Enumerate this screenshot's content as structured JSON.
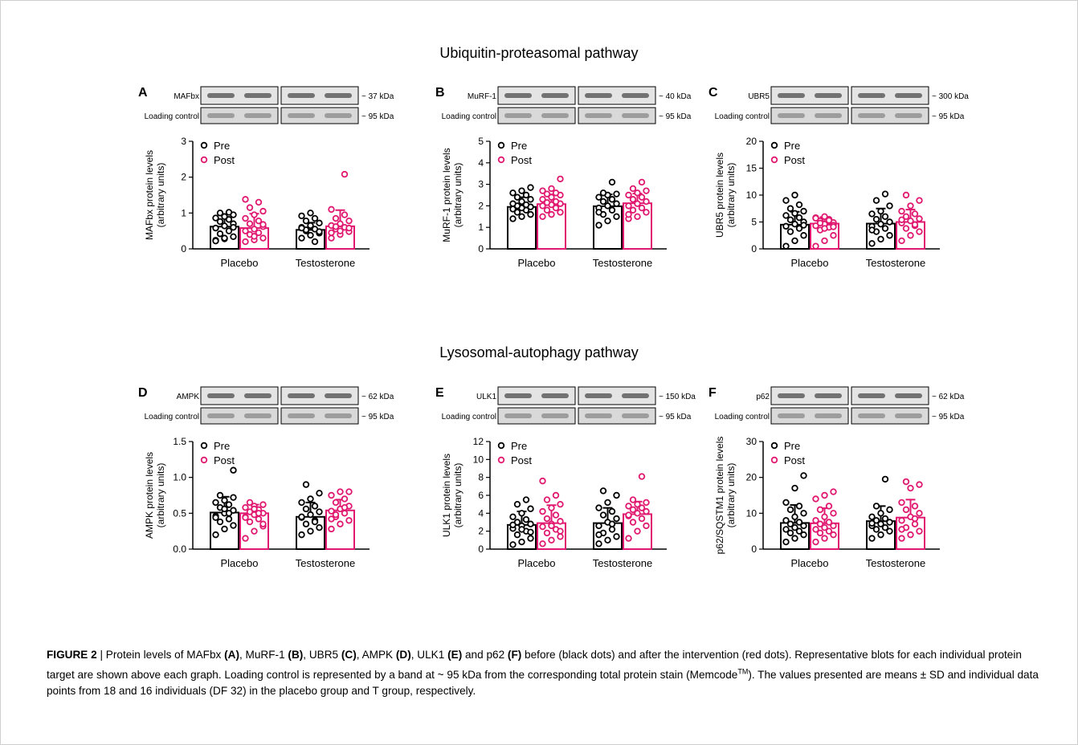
{
  "sections": {
    "top_title": "Ubiquitin-proteasomal pathway",
    "bottom_title": "Lysosomal-autophagy pathway"
  },
  "colors": {
    "pre": "#000000",
    "post": "#e0186f",
    "blot_band": "#555555"
  },
  "chart_data": [
    {
      "type": "bar",
      "panel_letter": "A",
      "blot_labels": [
        "MAFbx",
        "Loading control"
      ],
      "blot_sizes": [
        "~ 37 kDa",
        "~ 95 kDa"
      ],
      "ylabel": "MAFbx protein levels\n(arbitrary units)",
      "yticks": [
        "0",
        "1",
        "2",
        "3"
      ],
      "ylim": [
        0,
        3
      ],
      "categories": [
        "Placebo",
        "Testosterone"
      ],
      "legend": [
        "Pre",
        "Post"
      ],
      "series": [
        {
          "name": "Pre",
          "values": [
            0.62,
            0.53
          ],
          "sd": [
            0.35,
            0.2
          ],
          "points": [
            [
              0.24,
              0.28,
              0.34,
              0.42,
              0.5,
              0.58,
              0.64,
              0.7,
              0.76,
              0.82,
              0.86,
              0.9,
              0.95,
              1.0,
              1.02,
              0.22,
              0.3,
              0.6
            ],
            [
              0.3,
              0.38,
              0.44,
              0.5,
              0.55,
              0.6,
              0.65,
              0.72,
              0.78,
              0.85,
              0.92,
              1.0,
              0.48,
              0.53,
              0.2,
              0.58
            ]
          ]
        },
        {
          "name": "Post",
          "values": [
            0.58,
            0.63
          ],
          "sd": [
            0.4,
            0.45
          ],
          "points": [
            [
              0.2,
              0.25,
              0.3,
              0.4,
              0.45,
              0.5,
              0.55,
              0.62,
              0.7,
              0.78,
              0.85,
              0.95,
              1.05,
              1.15,
              1.3,
              1.38,
              0.35,
              0.68
            ],
            [
              0.3,
              0.4,
              0.48,
              0.55,
              0.6,
              0.65,
              0.7,
              0.78,
              0.85,
              0.95,
              1.1,
              0.5,
              0.58,
              0.62,
              2.08,
              0.45
            ]
          ]
        }
      ]
    },
    {
      "type": "bar",
      "panel_letter": "B",
      "blot_labels": [
        "MuRF-1",
        "Loading control"
      ],
      "blot_sizes": [
        "~ 40 kDa",
        "~ 95 kDa"
      ],
      "ylabel": "MuRF-1 protein levels\n(arbitrary units)",
      "yticks": [
        "0",
        "1",
        "2",
        "3",
        "4",
        "5"
      ],
      "ylim": [
        0,
        5
      ],
      "categories": [
        "Placebo",
        "Testosterone"
      ],
      "legend": [
        "Pre",
        "Post"
      ],
      "series": [
        {
          "name": "Pre",
          "values": [
            1.95,
            1.98
          ],
          "sd": [
            0.45,
            0.55
          ],
          "points": [
            [
              1.4,
              1.5,
              1.6,
              1.7,
              1.8,
              1.85,
              1.9,
              1.95,
              2.0,
              2.05,
              2.1,
              2.2,
              2.3,
              2.4,
              2.5,
              2.6,
              2.7,
              2.85
            ],
            [
              1.1,
              1.3,
              1.5,
              1.6,
              1.8,
              1.9,
              2.0,
              2.1,
              2.2,
              2.3,
              2.4,
              2.5,
              2.55,
              2.6,
              3.1,
              1.7
            ]
          ]
        },
        {
          "name": "Post",
          "values": [
            2.08,
            2.12
          ],
          "sd": [
            0.45,
            0.45
          ],
          "points": [
            [
              1.5,
              1.6,
              1.7,
              1.8,
              1.9,
              2.0,
              2.05,
              2.1,
              2.15,
              2.2,
              2.3,
              2.4,
              2.5,
              2.55,
              2.6,
              2.7,
              2.8,
              3.25
            ],
            [
              1.4,
              1.5,
              1.7,
              1.8,
              1.9,
              2.0,
              2.1,
              2.2,
              2.3,
              2.4,
              2.5,
              2.6,
              2.7,
              2.8,
              3.1,
              1.6
            ]
          ]
        }
      ]
    },
    {
      "type": "bar",
      "panel_letter": "C",
      "blot_labels": [
        "UBR5",
        "Loading control"
      ],
      "blot_sizes": [
        "~ 300 kDa",
        "~ 95 kDa"
      ],
      "ylabel": "UBR5 protein levels\n(arbitrary units)",
      "yticks": [
        "0",
        "5",
        "10",
        "15",
        "20"
      ],
      "ylim": [
        0,
        20
      ],
      "categories": [
        "Placebo",
        "Testosterone"
      ],
      "legend": [
        "Pre",
        "Post"
      ],
      "series": [
        {
          "name": "Pre",
          "values": [
            4.5,
            4.7
          ],
          "sd": [
            2.4,
            2.8
          ],
          "points": [
            [
              0.5,
              1.5,
              2.5,
              3.2,
              3.8,
              4.2,
              4.6,
              5.0,
              5.4,
              5.8,
              6.2,
              6.6,
              7.0,
              7.5,
              8.2,
              9.0,
              10.0,
              4.4
            ],
            [
              1.0,
              1.8,
              2.5,
              3.2,
              3.8,
              4.2,
              4.6,
              5.0,
              5.5,
              6.0,
              6.5,
              7.0,
              8.0,
              9.0,
              10.2,
              3.5
            ]
          ]
        },
        {
          "name": "Post",
          "values": [
            4.7,
            5.0
          ],
          "sd": [
            1.2,
            2.3
          ],
          "points": [
            [
              0.5,
              1.5,
              2.5,
              3.5,
              4.0,
              4.3,
              4.6,
              4.9,
              5.2,
              5.5,
              5.8,
              6.0,
              4.4,
              4.8,
              5.3,
              5.7,
              3.8,
              4.1
            ],
            [
              1.5,
              2.5,
              3.2,
              3.8,
              4.3,
              4.8,
              5.2,
              5.6,
              6.0,
              6.5,
              7.0,
              8.0,
              9.0,
              10.0,
              4.5,
              5.4
            ]
          ]
        }
      ]
    },
    {
      "type": "bar",
      "panel_letter": "D",
      "blot_labels": [
        "AMPK",
        "Loading control"
      ],
      "blot_sizes": [
        "~ 62 kDa",
        "~ 95 kDa"
      ],
      "ylabel": "AMPK protein levels\n(arbitrary units)",
      "yticks": [
        "0.0",
        "0.5",
        "1.0",
        "1.5"
      ],
      "ylim": [
        0,
        1.5
      ],
      "categories": [
        "Placebo",
        "Testosterone"
      ],
      "legend": [
        "Pre",
        "Post"
      ],
      "series": [
        {
          "name": "Pre",
          "values": [
            0.51,
            0.45
          ],
          "sd": [
            0.22,
            0.2
          ],
          "points": [
            [
              0.2,
              0.28,
              0.33,
              0.38,
              0.42,
              0.46,
              0.5,
              0.54,
              0.58,
              0.62,
              0.65,
              0.68,
              0.72,
              0.75,
              0.5,
              0.44,
              0.56,
              1.1
            ],
            [
              0.2,
              0.25,
              0.3,
              0.35,
              0.4,
              0.44,
              0.48,
              0.52,
              0.56,
              0.6,
              0.65,
              0.7,
              0.78,
              0.9,
              0.38,
              0.45
            ]
          ]
        },
        {
          "name": "Post",
          "values": [
            0.5,
            0.54
          ],
          "sd": [
            0.12,
            0.15
          ],
          "points": [
            [
              0.15,
              0.25,
              0.32,
              0.38,
              0.42,
              0.45,
              0.48,
              0.5,
              0.52,
              0.55,
              0.58,
              0.6,
              0.62,
              0.65,
              0.5,
              0.44,
              0.56,
              0.35
            ],
            [
              0.28,
              0.35,
              0.4,
              0.45,
              0.5,
              0.53,
              0.56,
              0.6,
              0.65,
              0.7,
              0.75,
              0.8,
              0.8,
              0.48,
              0.58,
              0.42
            ]
          ]
        }
      ]
    },
    {
      "type": "bar",
      "panel_letter": "E",
      "blot_labels": [
        "ULK1",
        "Loading control"
      ],
      "blot_sizes": [
        "~ 150 kDa",
        "~ 95 kDa"
      ],
      "ylabel": "ULK1 protein levels\n(arbitrary units)",
      "yticks": [
        "0",
        "2",
        "4",
        "6",
        "8",
        "10",
        "12"
      ],
      "ylim": [
        0,
        12
      ],
      "categories": [
        "Placebo",
        "Testosterone"
      ],
      "legend": [
        "Pre",
        "Post"
      ],
      "series": [
        {
          "name": "Pre",
          "values": [
            2.7,
            2.9
          ],
          "sd": [
            1.5,
            1.7
          ],
          "points": [
            [
              0.5,
              0.8,
              1.2,
              1.6,
              2.0,
              2.3,
              2.6,
              2.8,
              3.0,
              3.3,
              3.6,
              4.0,
              4.5,
              5.0,
              5.5,
              2.7,
              2.2,
              1.9
            ],
            [
              0.6,
              1.0,
              1.4,
              1.8,
              2.2,
              2.6,
              3.0,
              3.4,
              3.8,
              4.2,
              4.6,
              5.2,
              6.0,
              6.5,
              2.8,
              1.6
            ]
          ]
        },
        {
          "name": "Post",
          "values": [
            2.9,
            3.9
          ],
          "sd": [
            2.0,
            1.4
          ],
          "points": [
            [
              0.6,
              1.0,
              1.4,
              1.8,
              2.2,
              2.5,
              2.8,
              3.1,
              3.4,
              3.8,
              4.2,
              4.6,
              5.0,
              5.5,
              6.0,
              7.6,
              2.6,
              2.0
            ],
            [
              1.2,
              2.0,
              2.6,
              3.0,
              3.4,
              3.7,
              4.0,
              4.2,
              4.4,
              4.6,
              4.8,
              5.0,
              5.2,
              5.5,
              8.1,
              3.8
            ]
          ]
        }
      ]
    },
    {
      "type": "bar",
      "panel_letter": "F",
      "blot_labels": [
        "p62",
        "Loading control"
      ],
      "blot_sizes": [
        "~ 62 kDa",
        "~ 95 kDa"
      ],
      "ylabel": "p62/SQSTM1 protein levels\n(arbitrary units)",
      "yticks": [
        "0",
        "10",
        "20",
        "30"
      ],
      "ylim": [
        0,
        30
      ],
      "categories": [
        "Placebo",
        "Testosterone"
      ],
      "legend": [
        "Pre",
        "Post"
      ],
      "series": [
        {
          "name": "Pre",
          "values": [
            7.3,
            7.8
          ],
          "sd": [
            5.0,
            4.2
          ],
          "points": [
            [
              2.0,
              3.0,
              4.0,
              4.5,
              5.0,
              5.5,
              6.0,
              6.5,
              7.0,
              7.5,
              8.0,
              9.0,
              10.0,
              11.0,
              12.0,
              13.0,
              17.0,
              20.5
            ],
            [
              3.0,
              4.0,
              5.0,
              5.5,
              6.0,
              6.5,
              7.0,
              7.5,
              8.0,
              8.5,
              9.0,
              10.0,
              11.0,
              12.0,
              19.5,
              7.2
            ]
          ]
        },
        {
          "name": "Post",
          "values": [
            7.2,
            8.8
          ],
          "sd": [
            4.2,
            5.0
          ],
          "points": [
            [
              2.0,
              3.0,
              4.0,
              4.5,
              5.0,
              5.5,
              6.0,
              6.5,
              7.0,
              7.5,
              8.0,
              9.0,
              10.0,
              11.0,
              12.0,
              14.0,
              15.0,
              16.0
            ],
            [
              3.0,
              4.0,
              5.0,
              6.0,
              7.0,
              8.0,
              9.0,
              10.0,
              11.0,
              12.0,
              13.0,
              17.0,
              18.0,
              18.8,
              8.5,
              5.5
            ]
          ]
        }
      ]
    }
  ],
  "caption": {
    "label": "FIGURE 2",
    "separator": " | ",
    "text_parts": [
      "Protein levels of MAFbx ",
      "(A)",
      ", MuRF-1 ",
      "(B)",
      ", UBR5 ",
      "(C)",
      ", AMPK ",
      "(D)",
      ", ULK1 ",
      "(E)",
      " and p62 ",
      "(F)",
      " before (black dots) and after the intervention (red dots). Representative blots for each individual protein target are shown above each graph. Loading control is represented by a band at ~ 95 kDa from the corresponding total protein stain (Memcode",
      "TM",
      "). The values presented are means ± SD and individual data points from 18 and 16 individuals (DF 32) in the placebo group and T group, respectively."
    ]
  }
}
